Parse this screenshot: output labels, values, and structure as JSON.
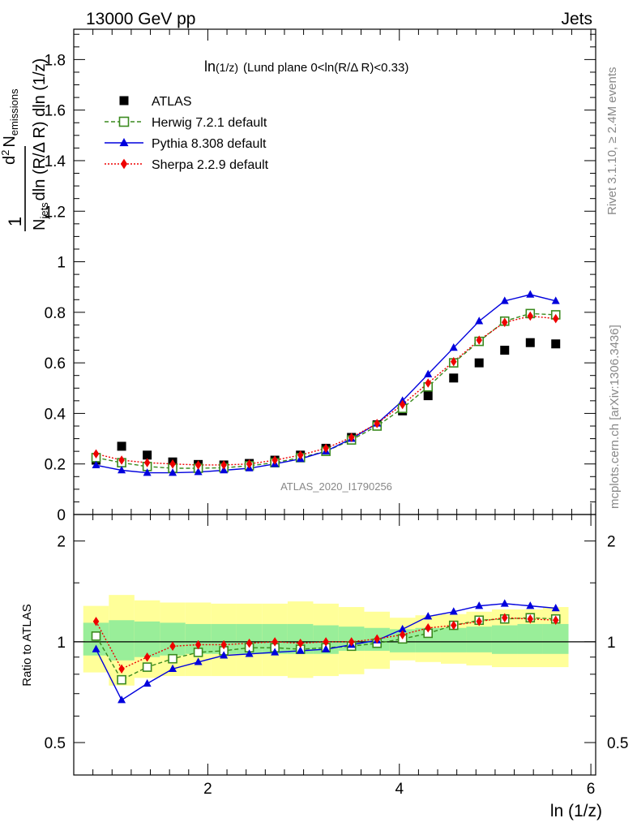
{
  "header": {
    "left": "13000 GeV pp",
    "right": "Jets"
  },
  "side": {
    "rivet": "Rivet 3.1.10, ≥ 2.4M events",
    "mcplots": "mcplots.cern.ch [arXiv:1306.3436]"
  },
  "chart_data": [
    {
      "type": "scatter",
      "title_main": "ln",
      "title_sub": "(1/z)",
      "title_rest": "(Lund plane 0<ln(R/Δ R)<0.33)",
      "ylabel_parts": {
        "one": "1",
        "n_jets": "N",
        "jets_sub": "jets",
        "den_rest": "dln (R/Δ R) dln (1/z)",
        "num_d": "d",
        "num_exp": "2",
        "num_n": "N",
        "num_sub": "emissions"
      },
      "xlabel": "ln (1/z)",
      "watermark": "ATLAS_2020_I1790256",
      "xlim": [
        0.6,
        6.05
      ],
      "ylim": [
        0,
        1.92
      ],
      "yticks": [
        "0",
        "0.2",
        "0.4",
        "0.6",
        "0.8",
        "1",
        "1.2",
        "1.4",
        "1.6",
        "1.8"
      ],
      "x": [
        0.833,
        1.1,
        1.367,
        1.633,
        1.9,
        2.167,
        2.433,
        2.7,
        2.967,
        3.233,
        3.5,
        3.767,
        4.033,
        4.3,
        4.567,
        4.833,
        5.1,
        5.367,
        5.633
      ],
      "series": [
        {
          "name": "ATLAS",
          "color": "#000000",
          "marker": "square",
          "line": "none",
          "values": [
            0.215,
            0.27,
            0.235,
            0.208,
            0.198,
            0.196,
            0.202,
            0.215,
            0.235,
            0.262,
            0.305,
            0.355,
            0.41,
            0.47,
            0.54,
            0.6,
            0.65,
            0.68,
            0.675
          ]
        },
        {
          "name": "Herwig 7.2.1 default",
          "color": "#3a8a1e",
          "marker": "open-square",
          "line": "dashed",
          "values": [
            0.225,
            0.205,
            0.19,
            0.183,
            0.183,
            0.185,
            0.193,
            0.205,
            0.225,
            0.25,
            0.295,
            0.35,
            0.42,
            0.505,
            0.6,
            0.685,
            0.765,
            0.795,
            0.79
          ]
        },
        {
          "name": "Pythia 8.308 default",
          "color": "#0000dd",
          "marker": "triangle",
          "line": "solid",
          "values": [
            0.195,
            0.175,
            0.165,
            0.165,
            0.168,
            0.175,
            0.183,
            0.2,
            0.22,
            0.25,
            0.3,
            0.36,
            0.45,
            0.555,
            0.66,
            0.765,
            0.845,
            0.87,
            0.845
          ]
        },
        {
          "name": "Sherpa 2.2.9 default",
          "color": "#ee0000",
          "marker": "diamond",
          "line": "dotted",
          "values": [
            0.24,
            0.215,
            0.205,
            0.2,
            0.196,
            0.196,
            0.2,
            0.215,
            0.235,
            0.262,
            0.305,
            0.36,
            0.435,
            0.52,
            0.605,
            0.69,
            0.76,
            0.785,
            0.775
          ]
        }
      ],
      "legend_position": "top-left"
    },
    {
      "type": "scatter",
      "ylabel": "Ratio to ATLAS",
      "ylim": [
        0.4,
        2.4
      ],
      "log_y": true,
      "yticks": [
        "0.5",
        "1",
        "2"
      ],
      "xticks": [
        "2",
        "4",
        "6"
      ],
      "reference": 1,
      "band_inner": [
        [
          0.91,
          1.14
        ],
        [
          0.88,
          1.16
        ],
        [
          0.9,
          1.15
        ],
        [
          0.91,
          1.14
        ],
        [
          0.92,
          1.13
        ],
        [
          0.92,
          1.13
        ],
        [
          0.92,
          1.13
        ],
        [
          0.92,
          1.13
        ],
        [
          0.92,
          1.13
        ],
        [
          0.92,
          1.12
        ],
        [
          0.94,
          1.11
        ],
        [
          0.94,
          1.1
        ],
        [
          0.93,
          1.09
        ],
        [
          0.93,
          1.1
        ],
        [
          0.93,
          1.1
        ],
        [
          0.93,
          1.11
        ],
        [
          0.92,
          1.12
        ],
        [
          0.92,
          1.13
        ],
        [
          0.92,
          1.13
        ]
      ],
      "band_outer": [
        [
          0.81,
          1.28
        ],
        [
          0.74,
          1.38
        ],
        [
          0.78,
          1.33
        ],
        [
          0.79,
          1.31
        ],
        [
          0.79,
          1.31
        ],
        [
          0.79,
          1.3
        ],
        [
          0.79,
          1.3
        ],
        [
          0.79,
          1.3
        ],
        [
          0.78,
          1.32
        ],
        [
          0.79,
          1.3
        ],
        [
          0.8,
          1.27
        ],
        [
          0.83,
          1.23
        ],
        [
          0.88,
          1.18
        ],
        [
          0.87,
          1.2
        ],
        [
          0.86,
          1.21
        ],
        [
          0.85,
          1.23
        ],
        [
          0.84,
          1.25
        ],
        [
          0.84,
          1.25
        ],
        [
          0.84,
          1.27
        ]
      ],
      "series": [
        {
          "name": "Herwig 7.2.1 default",
          "color": "#3a8a1e",
          "marker": "open-square",
          "line": "dashed",
          "values": [
            1.04,
            0.77,
            0.84,
            0.89,
            0.93,
            0.94,
            0.96,
            0.96,
            0.95,
            0.96,
            0.97,
            0.99,
            1.02,
            1.06,
            1.12,
            1.16,
            1.17,
            1.18,
            1.17
          ]
        },
        {
          "name": "Pythia 8.308 default",
          "color": "#0000dd",
          "marker": "triangle",
          "line": "solid",
          "values": [
            0.95,
            0.67,
            0.75,
            0.83,
            0.87,
            0.91,
            0.92,
            0.93,
            0.94,
            0.95,
            0.98,
            1.01,
            1.09,
            1.19,
            1.23,
            1.28,
            1.3,
            1.28,
            1.26
          ]
        },
        {
          "name": "Sherpa 2.2.9 default",
          "color": "#ee0000",
          "marker": "diamond",
          "line": "dotted",
          "values": [
            1.15,
            0.83,
            0.9,
            0.97,
            0.98,
            0.98,
            0.99,
            1.0,
            0.99,
            1.0,
            1.0,
            1.02,
            1.05,
            1.1,
            1.12,
            1.15,
            1.18,
            1.17,
            1.16
          ]
        }
      ]
    }
  ]
}
